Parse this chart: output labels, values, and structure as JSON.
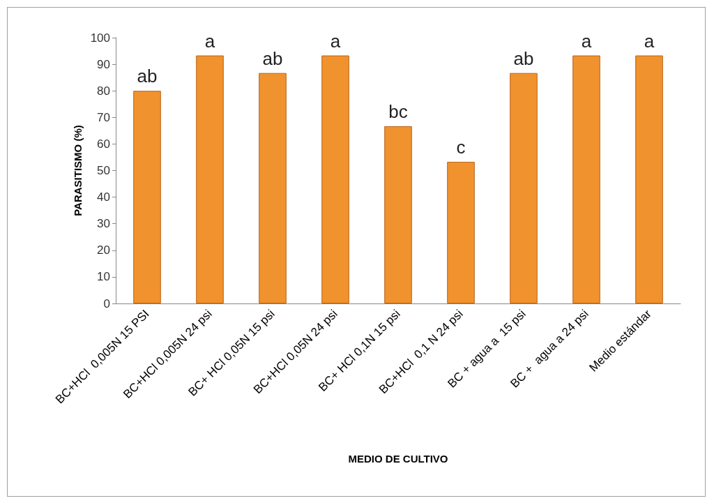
{
  "chart_data": {
    "type": "bar",
    "xlabel": "MEDIO DE CULTIVO",
    "ylabel": "PARASITISMO (%)",
    "categories": [
      "BC+HCl  0,005N 15 PSI",
      "BC+HCl 0,005N 24 psi",
      "BC+ HCl 0,05N 15 psi",
      "BC+HCl 0,05N 24 psi",
      "BC+ HCl 0,1N 15 psi",
      "BC+HCl  0,1 N 24 psi",
      "BC + agua a  15 psi",
      "BC +  agua a 24 psi",
      "Medio estándar"
    ],
    "values": [
      80,
      93.3,
      86.7,
      93.3,
      66.7,
      53.3,
      86.7,
      93.3,
      93.3
    ],
    "color": "#f0922e",
    "ylim": [
      0,
      100
    ],
    "yticks": [
      0,
      10,
      20,
      30,
      40,
      50,
      60,
      70,
      80,
      90,
      100
    ],
    "grid": false,
    "annotations": [
      {
        "text": "ab",
        "x": "BC+HCl  0,005N 15 PSI",
        "y": 80
      },
      {
        "text": "a",
        "x": "BC+HCl 0,005N 24 psi",
        "y": 93.3
      },
      {
        "text": "ab",
        "x": "BC+ HCl 0,05N 15 psi",
        "y": 86.7
      },
      {
        "text": "a",
        "x": "BC+HCl 0,05N 24 psi",
        "y": 93.3
      },
      {
        "text": "bc",
        "x": "BC+ HCl 0,1N 15 psi",
        "y": 66.7
      },
      {
        "text": "c",
        "x": "BC+HCl  0,1 N 24 psi",
        "y": 53.3
      },
      {
        "text": "ab",
        "x": "BC + agua a  15 psi",
        "y": 86.7
      },
      {
        "text": "a",
        "x": "BC +  agua a 24 psi",
        "y": 93.3
      },
      {
        "text": "a",
        "x": "Medio estándar",
        "y": 93.3
      }
    ]
  }
}
